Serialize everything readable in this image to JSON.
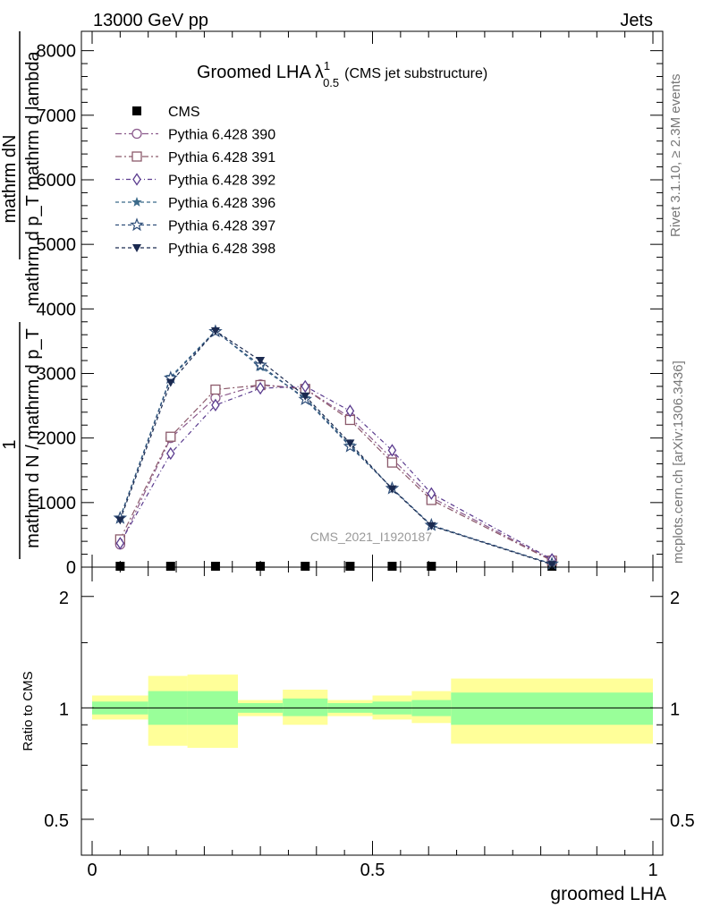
{
  "header": {
    "left": "13000 GeV pp",
    "right": "Jets"
  },
  "side_labels": {
    "rivet": "Rivet 3.1.10, ≥ 2.3M events",
    "mcplots": "mcplots.cern.ch [arXiv:1306.3436]"
  },
  "chart_data": [
    {
      "type": "line",
      "title_main": "Groomed LHA",
      "title_lambda": "λ",
      "title_sup": "1",
      "title_sub": "0.5",
      "title_note": "(CMS jet substructure)",
      "watermark": "CMS_2021_I1920187",
      "ylabel_frac_num": "mathrm dN",
      "ylabel_frac_den": "mathrm d p_T mathrm d lambda",
      "ylabel_prefix": "1",
      "ylabel_prefix_den": "mathrm d N / mathrm d p_T",
      "yticks": [
        {
          "value": 0,
          "label": "0"
        },
        {
          "value": 1000,
          "label": "1000"
        },
        {
          "value": 2000,
          "label": "2000"
        },
        {
          "value": 3000,
          "label": "3000"
        },
        {
          "value": 4000,
          "label": "4000"
        },
        {
          "value": 5000,
          "label": "5000"
        },
        {
          "value": 6000,
          "label": "6000"
        },
        {
          "value": 7000,
          "label": "7000"
        },
        {
          "value": 8000,
          "label": "8000"
        }
      ],
      "xlim": [
        -0.02,
        1.02
      ],
      "ylim": [
        0,
        8300
      ],
      "grid": false,
      "legend_position": "top-left",
      "x": [
        0.05,
        0.14,
        0.22,
        0.3,
        0.38,
        0.46,
        0.535,
        0.605,
        0.82
      ],
      "series": [
        {
          "name": "CMS",
          "marker": "filled-square",
          "color": "#000000",
          "dash": "",
          "values": [
            0,
            0,
            0,
            0,
            0,
            0,
            0,
            0,
            0
          ]
        },
        {
          "name": "Pythia 6.428 390",
          "marker": "open-circle",
          "color": "#8b5a8c",
          "dash": "7,3,2,3",
          "values": [
            350,
            2000,
            2620,
            2830,
            2760,
            2320,
            1680,
            1080,
            110
          ]
        },
        {
          "name": "Pythia 6.428 391",
          "marker": "open-square",
          "color": "#8c5a6b",
          "dash": "7,3,2,3",
          "values": [
            430,
            2020,
            2750,
            2820,
            2760,
            2280,
            1620,
            1040,
            100
          ]
        },
        {
          "name": "Pythia 6.428 392",
          "marker": "open-diamond",
          "color": "#5b3c8f",
          "dash": "5,3,1,3",
          "values": [
            370,
            1760,
            2510,
            2770,
            2800,
            2420,
            1810,
            1140,
            120
          ]
        },
        {
          "name": "Pythia 6.428 396",
          "marker": "filled-star",
          "color": "#3b6a8a",
          "dash": "4,3",
          "values": [
            770,
            2950,
            3660,
            3100,
            2620,
            1890,
            1220,
            640,
            50
          ]
        },
        {
          "name": "Pythia 6.428 397",
          "marker": "open-star",
          "color": "#2f4f7a",
          "dash": "4,3",
          "values": [
            760,
            2930,
            3650,
            3130,
            2600,
            1870,
            1220,
            650,
            50
          ]
        },
        {
          "name": "Pythia 6.428 398",
          "marker": "filled-triangle-down",
          "color": "#1b2a50",
          "dash": "4,3",
          "values": [
            730,
            2860,
            3660,
            3200,
            2650,
            1920,
            1210,
            640,
            40
          ]
        }
      ]
    },
    {
      "type": "area",
      "ylabel": "Ratio to CMS",
      "xlabel": "groomed LHA",
      "xticks": [
        {
          "value": 0,
          "label": "0"
        },
        {
          "value": 0.5,
          "label": "0.5"
        },
        {
          "value": 1,
          "label": "1"
        }
      ],
      "yticks": [
        {
          "value": 0.5,
          "label": "0.5"
        },
        {
          "value": 1,
          "label": "1"
        },
        {
          "value": 2,
          "label": "2"
        }
      ],
      "ylim": [
        0.4,
        2.4
      ],
      "log_y": true,
      "band_colors": {
        "inner": "#99ff99",
        "outer": "#ffff99"
      },
      "bins": [
        {
          "x0": 0.0,
          "x1": 0.1,
          "in_lo": 0.96,
          "in_hi": 1.04,
          "out_lo": 0.93,
          "out_hi": 1.08
        },
        {
          "x0": 0.1,
          "x1": 0.17,
          "in_lo": 0.9,
          "in_hi": 1.11,
          "out_lo": 0.79,
          "out_hi": 1.22
        },
        {
          "x0": 0.17,
          "x1": 0.26,
          "in_lo": 0.9,
          "in_hi": 1.11,
          "out_lo": 0.78,
          "out_hi": 1.23
        },
        {
          "x0": 0.26,
          "x1": 0.34,
          "in_lo": 0.97,
          "in_hi": 1.03,
          "out_lo": 0.95,
          "out_hi": 1.05
        },
        {
          "x0": 0.34,
          "x1": 0.42,
          "in_lo": 0.95,
          "in_hi": 1.06,
          "out_lo": 0.9,
          "out_hi": 1.12
        },
        {
          "x0": 0.42,
          "x1": 0.5,
          "in_lo": 0.97,
          "in_hi": 1.03,
          "out_lo": 0.95,
          "out_hi": 1.05
        },
        {
          "x0": 0.5,
          "x1": 0.57,
          "in_lo": 0.96,
          "in_hi": 1.04,
          "out_lo": 0.93,
          "out_hi": 1.08
        },
        {
          "x0": 0.57,
          "x1": 0.64,
          "in_lo": 0.95,
          "in_hi": 1.05,
          "out_lo": 0.91,
          "out_hi": 1.11
        },
        {
          "x0": 0.64,
          "x1": 1.0,
          "in_lo": 0.9,
          "in_hi": 1.1,
          "out_lo": 0.8,
          "out_hi": 1.2
        }
      ]
    }
  ]
}
